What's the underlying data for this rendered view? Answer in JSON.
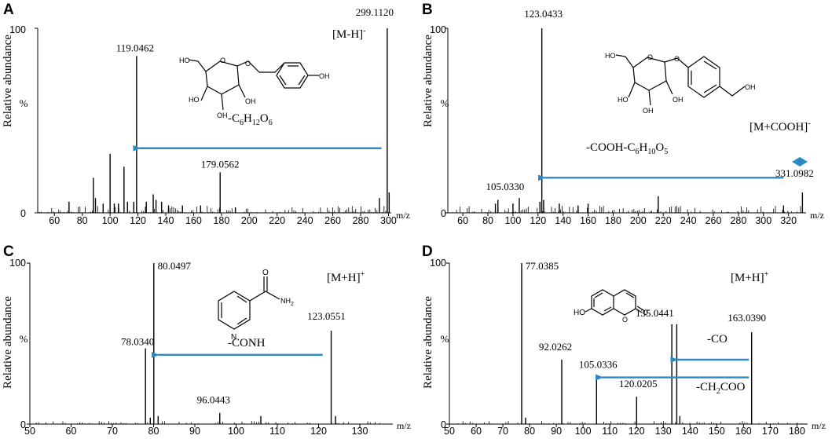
{
  "chart_data": [
    {
      "type": "bar",
      "panel": "A",
      "title": "",
      "xlabel": "m/z",
      "ylabel": "Relative abundance",
      "y_percent_label": "%",
      "xlim": [
        48,
        302
      ],
      "ylim": [
        0,
        100
      ],
      "xticks": [
        60,
        80,
        100,
        120,
        140,
        160,
        180,
        200,
        220,
        240,
        260,
        280,
        300
      ],
      "ytick_labels": [
        "100",
        "0"
      ],
      "peaks": [
        {
          "x": 70.5,
          "y": 6
        },
        {
          "x": 88,
          "y": 19
        },
        {
          "x": 89.5,
          "y": 8
        },
        {
          "x": 95,
          "y": 5
        },
        {
          "x": 100,
          "y": 32
        },
        {
          "x": 103,
          "y": 5
        },
        {
          "x": 106,
          "y": 5
        },
        {
          "x": 110,
          "y": 25
        },
        {
          "x": 112.5,
          "y": 6
        },
        {
          "x": 117,
          "y": 6
        },
        {
          "x": 119.0462,
          "y": 85
        },
        {
          "x": 126,
          "y": 6
        },
        {
          "x": 131,
          "y": 10
        },
        {
          "x": 133,
          "y": 7
        },
        {
          "x": 137,
          "y": 6
        },
        {
          "x": 142,
          "y": 4
        },
        {
          "x": 152,
          "y": 4
        },
        {
          "x": 165,
          "y": 4
        },
        {
          "x": 179.0562,
          "y": 22
        },
        {
          "x": 190,
          "y": 3
        },
        {
          "x": 293.5,
          "y": 8
        },
        {
          "x": 299.112,
          "y": 100
        },
        {
          "x": 300.5,
          "y": 11
        }
      ],
      "annotations": [
        {
          "text": "119.0462",
          "x": 119.0462
        },
        {
          "text": "179.0562",
          "x": 179.0562
        },
        {
          "text": "299.1120",
          "x": 299.112
        }
      ],
      "ion": {
        "text": "[M-H]",
        "sup": "-"
      },
      "loss": {
        "base": "-C",
        "parts": [
          [
            "6",
            "sub"
          ],
          [
            "H",
            ""
          ],
          [
            "12",
            "sub"
          ],
          [
            "O",
            ""
          ],
          [
            "6",
            "sub"
          ]
        ]
      },
      "arrows": [
        {
          "from": 295,
          "to": 121,
          "y": 35
        }
      ]
    },
    {
      "type": "bar",
      "panel": "B",
      "title": "",
      "xlabel": "m/z",
      "ylabel": "Relative abundance",
      "y_percent_label": "%",
      "xlim": [
        48,
        334
      ],
      "ylim": [
        0,
        100
      ],
      "xticks": [
        60,
        80,
        100,
        120,
        140,
        160,
        180,
        200,
        220,
        240,
        260,
        280,
        300,
        320
      ],
      "ytick_labels": [
        "100",
        "0"
      ],
      "peaks": [
        {
          "x": 86,
          "y": 5
        },
        {
          "x": 88,
          "y": 7
        },
        {
          "x": 100,
          "y": 5
        },
        {
          "x": 105.033,
          "y": 8
        },
        {
          "x": 121.5,
          "y": 6
        },
        {
          "x": 123.0433,
          "y": 100
        },
        {
          "x": 124.5,
          "y": 7
        },
        {
          "x": 137,
          "y": 5
        },
        {
          "x": 152,
          "y": 4
        },
        {
          "x": 160,
          "y": 5
        },
        {
          "x": 216,
          "y": 9
        },
        {
          "x": 316,
          "y": 4
        },
        {
          "x": 331.0982,
          "y": 11
        }
      ],
      "annotations": [
        {
          "text": "123.0433",
          "x": 123.0433
        },
        {
          "text": "105.0330",
          "x": 105.033
        },
        {
          "text": "331.0982",
          "x": 331.0982
        }
      ],
      "ion": {
        "text": "[M+COOH]",
        "sup": "-"
      },
      "loss": {
        "base": "-COOH-C",
        "parts": [
          [
            "6",
            "sub"
          ],
          [
            "H",
            ""
          ],
          [
            "10",
            "sub"
          ],
          [
            "O",
            ""
          ],
          [
            "5",
            "sub"
          ]
        ]
      },
      "arrows": [
        {
          "from": 316,
          "to": 125,
          "y": 19
        }
      ]
    },
    {
      "type": "bar",
      "panel": "C",
      "title": "",
      "xlabel": "m/z",
      "ylabel": "Relative abundance",
      "y_percent_label": "%",
      "xlim": [
        50,
        138
      ],
      "ylim": [
        0,
        100
      ],
      "xticks": [
        50,
        60,
        70,
        80,
        90,
        100,
        110,
        120,
        130
      ],
      "ytick_labels": [
        "100",
        "0"
      ],
      "peaks": [
        {
          "x": 78.034,
          "y": 47
        },
        {
          "x": 79.2,
          "y": 4
        },
        {
          "x": 80.0497,
          "y": 100
        },
        {
          "x": 81.1,
          "y": 5
        },
        {
          "x": 96.0443,
          "y": 7
        },
        {
          "x": 106,
          "y": 5
        },
        {
          "x": 123.0551,
          "y": 58
        },
        {
          "x": 124.1,
          "y": 5
        }
      ],
      "annotations": [
        {
          "text": "80.0497",
          "x": 80.0497
        },
        {
          "text": "78.0340",
          "x": 78.034
        },
        {
          "text": "96.0443",
          "x": 96.0443
        },
        {
          "text": "123.0551",
          "x": 123.0551
        }
      ],
      "ion": {
        "text": "[M+H]",
        "sup": "+"
      },
      "loss": {
        "base": "-CONH",
        "parts": []
      },
      "molecule_label": "NH",
      "molecule_label_sub": "2",
      "arrows": [
        {
          "from": 121,
          "to": 81,
          "y": 43
        }
      ]
    },
    {
      "type": "bar",
      "panel": "D",
      "title": "",
      "xlabel": "m/z",
      "ylabel": "Relative abundance",
      "y_percent_label": "%",
      "xlim": [
        50,
        184
      ],
      "ylim": [
        0,
        100
      ],
      "xticks": [
        50,
        60,
        70,
        80,
        90,
        100,
        110,
        120,
        130,
        140,
        150,
        160,
        170,
        180
      ],
      "ytick_labels": [
        "100",
        "0"
      ],
      "peaks": [
        {
          "x": 77.0385,
          "y": 100
        },
        {
          "x": 78.5,
          "y": 4
        },
        {
          "x": 92.0262,
          "y": 40
        },
        {
          "x": 105.0336,
          "y": 29
        },
        {
          "x": 120.0205,
          "y": 17
        },
        {
          "x": 133.2,
          "y": 62
        },
        {
          "x": 135.0441,
          "y": 62
        },
        {
          "x": 136.2,
          "y": 5
        },
        {
          "x": 163.039,
          "y": 57
        }
      ],
      "annotations": [
        {
          "text": "77.0385",
          "x": 77.0385
        },
        {
          "text": "135.0441",
          "x": 135.0441
        },
        {
          "text": "92.0262",
          "x": 92.0262
        },
        {
          "text": "105.0336",
          "x": 105.0336
        },
        {
          "text": "120.0205",
          "x": 120.0205
        },
        {
          "text": "163.0390",
          "x": 163.039
        }
      ],
      "ion": {
        "text": "[M+H]",
        "sup": "+"
      },
      "loss": {
        "base": "-CO",
        "parts": []
      },
      "loss2": {
        "base": "-CH",
        "parts": [
          [
            "2",
            "sub"
          ],
          [
            "COO",
            ""
          ]
        ]
      },
      "molecule_label": "HO",
      "arrows": [
        {
          "from": 162,
          "to": 135,
          "y": 40
        },
        {
          "from": 162,
          "to": 107,
          "y": 29
        }
      ]
    }
  ],
  "style": {
    "arrow_color": "#2a8ac9",
    "line_color": "#000000"
  }
}
